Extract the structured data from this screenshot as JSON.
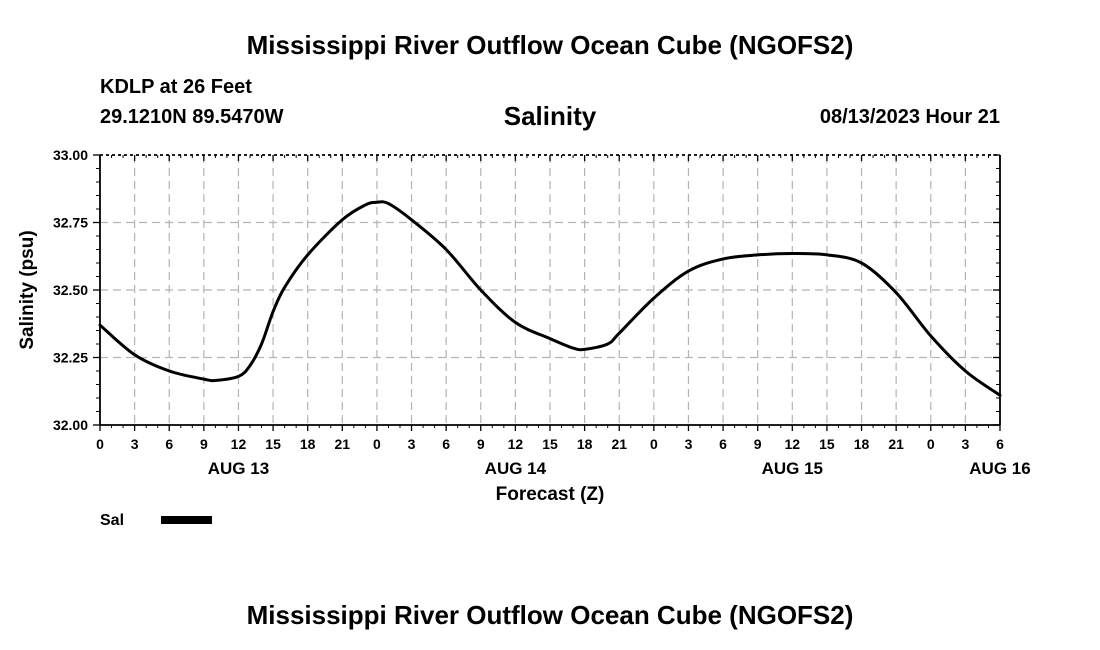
{
  "page": {
    "title_top": "Mississippi River Outflow Ocean Cube (NGOFS2)",
    "title_bottom": "Mississippi River Outflow Ocean Cube (NGOFS2)"
  },
  "header": {
    "station": "KDLP at 26 Feet",
    "coords": "29.1210N  89.5470W",
    "variable": "Salinity",
    "datetime": "08/13/2023 Hour 21"
  },
  "legend": {
    "label": "Sal",
    "color": "#000000"
  },
  "chart_data": {
    "type": "line",
    "title": "Salinity",
    "xlabel": "Forecast (Z)",
    "ylabel": "Salinity (psu)",
    "xlim": [
      0,
      78
    ],
    "ylim": [
      32.0,
      33.0
    ],
    "grid": true,
    "legend_position": "bottom-left",
    "y_ticks": [
      32.0,
      32.25,
      32.5,
      32.75,
      33.0
    ],
    "y_tick_labels": [
      "32.00",
      "32.25",
      "32.50",
      "32.75",
      "33.00"
    ],
    "x_ticks": [
      0,
      3,
      6,
      9,
      12,
      15,
      18,
      21,
      24,
      27,
      30,
      33,
      36,
      39,
      42,
      45,
      48,
      51,
      54,
      57,
      60,
      63,
      66,
      69,
      72,
      75,
      78
    ],
    "x_tick_labels": [
      "0",
      "3",
      "6",
      "9",
      "12",
      "15",
      "18",
      "21",
      "0",
      "3",
      "6",
      "9",
      "12",
      "15",
      "18",
      "21",
      "0",
      "3",
      "6",
      "9",
      "12",
      "15",
      "18",
      "21",
      "0",
      "3",
      "6"
    ],
    "date_labels": [
      {
        "x": 12,
        "label": "AUG 13"
      },
      {
        "x": 36,
        "label": "AUG 14"
      },
      {
        "x": 60,
        "label": "AUG 15"
      },
      {
        "x": 78,
        "label": "AUG 16"
      }
    ],
    "series": [
      {
        "name": "Sal",
        "color": "#000000",
        "x": [
          0,
          3,
          6,
          9,
          10,
          12,
          13,
          14,
          15,
          16,
          18,
          21,
          23,
          24,
          25,
          27,
          30,
          33,
          36,
          39,
          41,
          42,
          44,
          45,
          48,
          51,
          54,
          57,
          60,
          63,
          66,
          69,
          72,
          75,
          78
        ],
        "y": [
          32.37,
          32.26,
          32.2,
          32.17,
          32.165,
          32.18,
          32.22,
          32.3,
          32.42,
          32.51,
          32.63,
          32.76,
          32.815,
          32.825,
          32.82,
          32.76,
          32.65,
          32.5,
          32.38,
          32.32,
          32.285,
          32.28,
          32.3,
          32.34,
          32.47,
          32.57,
          32.615,
          32.63,
          32.635,
          32.63,
          32.6,
          32.49,
          32.33,
          32.2,
          32.11
        ]
      }
    ]
  }
}
